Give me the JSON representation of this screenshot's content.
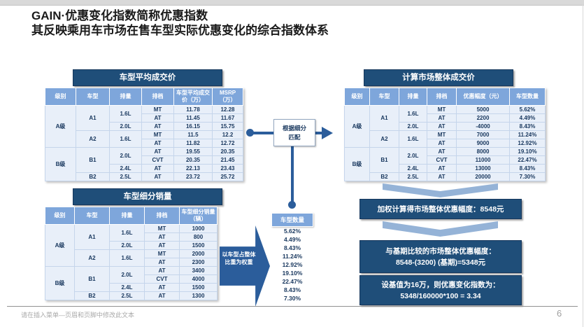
{
  "slide": {
    "title_line1": "GAIN·优惠变化指数简称优惠指数",
    "title_line2": "其反映乘用车市场在售车型实际优惠变化的综合指数体系",
    "footer_text": "请在插入菜单—页眉和页脚中修改此文本",
    "page_number": "6"
  },
  "colors": {
    "navy": "#1F4E79",
    "medium_blue": "#2B5D9B",
    "table_header_blue": "#7EA6DB",
    "chevron_blue": "#95B3D7",
    "row_bg": "#E8EFF9",
    "cell_text": "#17365D"
  },
  "avg_price_table": {
    "title": "车型平均成交价",
    "headers": [
      "级别",
      "车型",
      "排量",
      "排档",
      "车型平均成交价（万）",
      "MSRP（万）"
    ],
    "rows": [
      [
        {
          "t": "A级",
          "rs": 5
        },
        {
          "t": "A1",
          "rs": 3
        },
        {
          "t": "1.6L",
          "rs": 2
        },
        {
          "t": "MT"
        },
        {
          "t": "11.78"
        },
        {
          "t": "12.28"
        }
      ],
      [
        {
          "t": "AT"
        },
        {
          "t": "11.45"
        },
        {
          "t": "11.67"
        }
      ],
      [
        {
          "t": "2.0L"
        },
        {
          "t": "AT"
        },
        {
          "t": "16.15"
        },
        {
          "t": "15.75"
        }
      ],
      [
        {
          "t": "A2",
          "rs": 2
        },
        {
          "t": "1.6L",
          "rs": 2
        },
        {
          "t": "MT"
        },
        {
          "t": "11.5"
        },
        {
          "t": "12.2"
        }
      ],
      [
        {
          "t": "AT"
        },
        {
          "t": "11.82"
        },
        {
          "t": "12.72"
        }
      ],
      [
        {
          "t": "B级",
          "rs": 4
        },
        {
          "t": "B1",
          "rs": 3
        },
        {
          "t": "2.0L",
          "rs": 2
        },
        {
          "t": "AT"
        },
        {
          "t": "19.55"
        },
        {
          "t": "20.35"
        }
      ],
      [
        {
          "t": "CVT"
        },
        {
          "t": "20.35"
        },
        {
          "t": "21.45"
        }
      ],
      [
        {
          "t": "2.4L"
        },
        {
          "t": "AT"
        },
        {
          "t": "22.13"
        },
        {
          "t": "23.43"
        }
      ],
      [
        {
          "t": "B2"
        },
        {
          "t": "2.5L"
        },
        {
          "t": "AT"
        },
        {
          "t": "23.72"
        },
        {
          "t": "25.72"
        }
      ]
    ]
  },
  "segment_sales_table": {
    "title": "车型细分销量",
    "headers": [
      "级别",
      "车型",
      "排量",
      "排档",
      "车型细分销量（辆）"
    ],
    "rows": [
      [
        {
          "t": "A级",
          "rs": 5
        },
        {
          "t": "A1",
          "rs": 3
        },
        {
          "t": "1.6L",
          "rs": 2
        },
        {
          "t": "MT"
        },
        {
          "t": "1000"
        }
      ],
      [
        {
          "t": "AT"
        },
        {
          "t": "800"
        }
      ],
      [
        {
          "t": "2.0L"
        },
        {
          "t": "AT"
        },
        {
          "t": "1500"
        }
      ],
      [
        {
          "t": "A2",
          "rs": 2
        },
        {
          "t": "1.6L",
          "rs": 2
        },
        {
          "t": "MT"
        },
        {
          "t": "2000"
        }
      ],
      [
        {
          "t": "AT"
        },
        {
          "t": "2300"
        }
      ],
      [
        {
          "t": "B级",
          "rs": 4
        },
        {
          "t": "B1",
          "rs": 3
        },
        {
          "t": "2.0L",
          "rs": 2
        },
        {
          "t": "AT"
        },
        {
          "t": "3400"
        }
      ],
      [
        {
          "t": "CVT"
        },
        {
          "t": "4000"
        }
      ],
      [
        {
          "t": "2.4L"
        },
        {
          "t": "AT"
        },
        {
          "t": "1500"
        }
      ],
      [
        {
          "t": "B2"
        },
        {
          "t": "2.5L"
        },
        {
          "t": "AT"
        },
        {
          "t": "1300"
        }
      ]
    ]
  },
  "market_price_table": {
    "title": "计算市场整体成交价",
    "headers": [
      "级别",
      "车型",
      "排量",
      "排档",
      "优惠幅度（元）",
      "车型数量"
    ],
    "rows": [
      [
        {
          "t": "A级",
          "rs": 5
        },
        {
          "t": "A1",
          "rs": 3
        },
        {
          "t": "1.6L",
          "rs": 2
        },
        {
          "t": "MT"
        },
        {
          "t": "5000"
        },
        {
          "t": "5.62%"
        }
      ],
      [
        {
          "t": "AT"
        },
        {
          "t": "2200"
        },
        {
          "t": "4.49%"
        }
      ],
      [
        {
          "t": "2.0L"
        },
        {
          "t": "AT"
        },
        {
          "t": "-4000"
        },
        {
          "t": "8.43%"
        }
      ],
      [
        {
          "t": "A2",
          "rs": 2
        },
        {
          "t": "1.6L",
          "rs": 2
        },
        {
          "t": "MT"
        },
        {
          "t": "7000"
        },
        {
          "t": "11.24%"
        }
      ],
      [
        {
          "t": "AT"
        },
        {
          "t": "9000"
        },
        {
          "t": "12.92%"
        }
      ],
      [
        {
          "t": "B级",
          "rs": 4
        },
        {
          "t": "B1",
          "rs": 3
        },
        {
          "t": "2.0L",
          "rs": 2
        },
        {
          "t": "AT"
        },
        {
          "t": "8000"
        },
        {
          "t": "19.10%"
        }
      ],
      [
        {
          "t": "CVT"
        },
        {
          "t": "11000"
        },
        {
          "t": "22.47%"
        }
      ],
      [
        {
          "t": "2.4L"
        },
        {
          "t": "AT"
        },
        {
          "t": "13000"
        },
        {
          "t": "8.43%"
        }
      ],
      [
        {
          "t": "B2"
        },
        {
          "t": "2.5L"
        },
        {
          "t": "AT"
        },
        {
          "t": "20000"
        },
        {
          "t": "7.30%"
        }
      ]
    ]
  },
  "match_box": {
    "line1": "根据细分",
    "line2": "匹配"
  },
  "weight_arrow": {
    "line1": "以车型占整体",
    "line2": "比重为权重"
  },
  "share_column": {
    "header": "车型数量",
    "values": [
      "5.62%",
      "4.49%",
      "8.43%",
      "11.24%",
      "12.92%",
      "19.10%",
      "22.47%",
      "8.43%",
      "7.30%"
    ]
  },
  "result_flow": {
    "box1": "加权计算得市场整体优惠幅度：8548元",
    "box2_line1": "与基期比较的市场整体优惠幅度：",
    "box2_line2": "8548-(3200) (基期)=5348元",
    "box3_line1": "设基值为16万，则优惠变化指数为：",
    "box3_line2": "5348/160000*100 = 3.34"
  }
}
